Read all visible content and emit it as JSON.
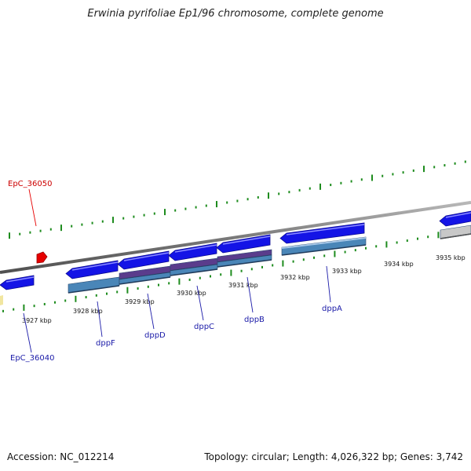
{
  "title": "Erwinia pyrifoliae Ep1/96 chromosome, complete genome",
  "footer": {
    "accession": "Accession: NC_012214",
    "summary": "Topology: circular; Length: 4,026,322 bp; Genes: 3,742"
  },
  "kbp_labels": [
    "3927 kbp",
    "3928 kbp",
    "3929 kbp",
    "3930 kbp",
    "3931 kbp",
    "3932 kbp",
    "3933 kbp",
    "3934 kbp",
    "3935 kbp"
  ],
  "genes": [
    {
      "name": "EpC_36050",
      "highlight": true
    },
    {
      "name": "EpC_36040",
      "highlight": false
    },
    {
      "name": "dppF",
      "highlight": false
    },
    {
      "name": "dppD",
      "highlight": false
    },
    {
      "name": "dppC",
      "highlight": false
    },
    {
      "name": "dppB",
      "highlight": false
    },
    {
      "name": "dppA",
      "highlight": false
    }
  ],
  "colors": {
    "gene": "#1414e6",
    "cds": "#4a86b8",
    "cds_overlap": "#5a3c8c",
    "ticks": "#1e8c1e",
    "backbone": "#8a8a8a",
    "highlight": "#e60000",
    "highlight_label": "#cc0000",
    "gene_label": "#1a1aa8"
  }
}
